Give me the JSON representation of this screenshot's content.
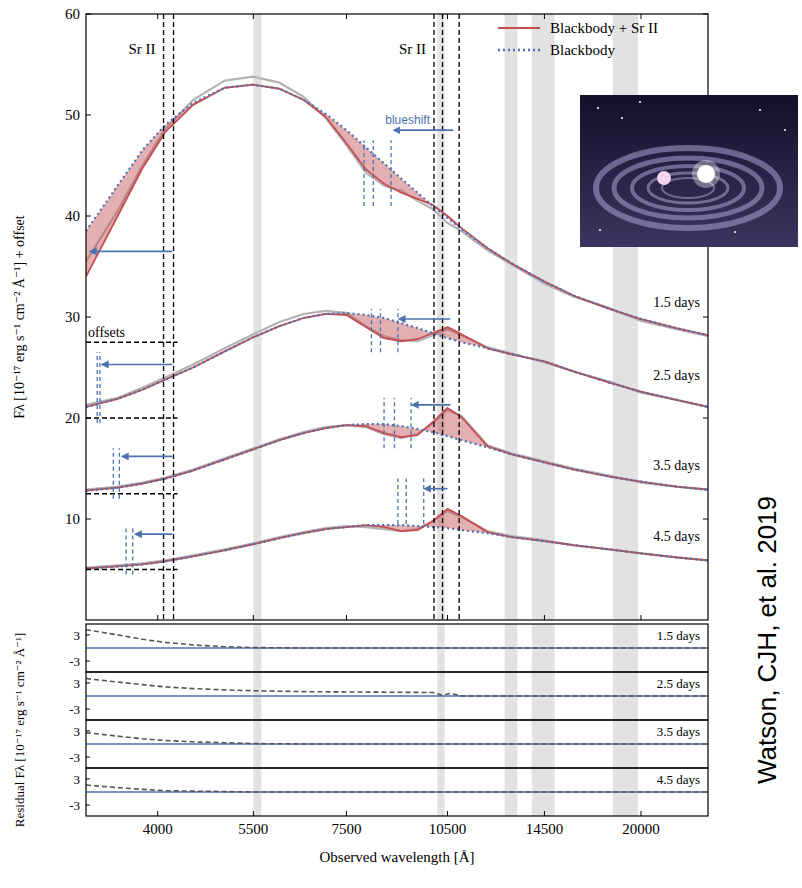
{
  "chart_data": [
    {
      "type": "line",
      "y_label": "Fλ [10⁻¹⁷ erg s⁻¹ cm⁻² Å⁻¹] + offset",
      "log": "x",
      "xlim": [
        3150,
        25000
      ],
      "xticks": [
        4000,
        5500,
        7500,
        10500,
        14500,
        20000
      ],
      "ylim": [
        0,
        60
      ],
      "yticks": [
        10,
        20,
        30,
        40,
        50,
        60
      ],
      "tick_labels": "y",
      "legend": "upper right",
      "x": [
        3150,
        3500,
        3800,
        4100,
        4500,
        5000,
        5500,
        6000,
        6500,
        7000,
        7500,
        8000,
        8500,
        9000,
        9500,
        10000,
        10500,
        11000,
        12000,
        13000,
        14500,
        16000,
        18000,
        20000,
        22500,
        25000
      ],
      "series": [
        {
          "epoch": "1.5 days",
          "color": "#b3b3b3",
          "line_style": "solid",
          "values": [
            35.5,
            40.5,
            45,
            48.6,
            51.5,
            53.4,
            53.8,
            53.2,
            51.8,
            49.7,
            47,
            44.3,
            43,
            42.5,
            41.5,
            40.7,
            39.3,
            38.5,
            36.6,
            35.2,
            33.3,
            32,
            30.9,
            29.6,
            28.8,
            28.1
          ]
        },
        {
          "name": "Blackbody + Sr II",
          "epoch": "1.5 days",
          "color": "#c44e52",
          "line_style": "solid",
          "values": [
            34,
            40,
            44.7,
            48.3,
            51,
            52.7,
            53,
            52.6,
            51.5,
            49.8,
            47.2,
            44.6,
            43.2,
            42.3,
            41.7,
            41.1,
            40,
            38.8,
            36.8,
            35.3,
            33.5,
            32.1,
            30.8,
            29.8,
            28.9,
            28.2
          ]
        },
        {
          "name": "Blackbody",
          "epoch": "1.5 days",
          "color": "#4c72b0",
          "line_style": "dotted",
          "values": [
            38.5,
            43,
            46.5,
            49,
            51.2,
            52.7,
            53,
            52.6,
            51.5,
            50.1,
            48.5,
            46.8,
            45.2,
            43.7,
            42.3,
            41,
            39.8,
            38.7,
            36.8,
            35.3,
            33.5,
            32.1,
            30.8,
            29.8,
            28.9,
            28.2
          ]
        },
        {
          "epoch": "2.5 days",
          "color": "#b3b3b3",
          "line_style": "solid",
          "values": [
            21.3,
            22,
            23,
            24,
            25.3,
            26.9,
            28.3,
            29.5,
            30.3,
            30.6,
            30.4,
            29.1,
            28.1,
            27.7,
            27.6,
            28.2,
            28.8,
            28.2,
            27,
            26.4,
            25.5,
            24.6,
            23.6,
            22.5,
            21.8,
            21.1
          ]
        },
        {
          "name": "Blackbody + Sr II",
          "epoch": "2.5 days",
          "color": "#c44e52",
          "line_style": "solid",
          "values": [
            21.1,
            21.9,
            22.8,
            23.8,
            25,
            26.6,
            28,
            29.1,
            29.9,
            30.3,
            30.2,
            29,
            27.9,
            27.6,
            27.8,
            28.4,
            29,
            28.3,
            26.9,
            26.3,
            25.6,
            24.6,
            23.5,
            22.6,
            21.8,
            21.1
          ]
        },
        {
          "name": "Blackbody",
          "epoch": "2.5 days",
          "color": "#4c72b0",
          "line_style": "dotted",
          "values": [
            21.1,
            21.9,
            22.8,
            23.8,
            25,
            26.6,
            28,
            29.1,
            29.9,
            30.3,
            30.4,
            30.2,
            29.9,
            29.4,
            28.9,
            28.4,
            27.9,
            27.5,
            26.9,
            26.3,
            25.6,
            24.6,
            23.5,
            22.6,
            21.8,
            21.1
          ]
        },
        {
          "epoch": "3.5 days",
          "color": "#b3b3b3",
          "line_style": "solid",
          "values": [
            12.9,
            13.2,
            13.6,
            14.1,
            14.9,
            16,
            17,
            17.9,
            18.6,
            19.1,
            19.3,
            19.1,
            18.4,
            18,
            18.4,
            19.5,
            20.8,
            20.2,
            17.3,
            16.5,
            15.7,
            15,
            14.3,
            13.6,
            13.2,
            12.9
          ]
        },
        {
          "name": "Blackbody + Sr II",
          "epoch": "3.5 days",
          "color": "#c44e52",
          "line_style": "solid",
          "values": [
            12.8,
            13.1,
            13.5,
            14,
            14.8,
            15.9,
            16.9,
            17.8,
            18.5,
            19,
            19.3,
            19.2,
            18.5,
            18.1,
            18.3,
            19.6,
            21,
            20.1,
            17.2,
            16.4,
            15.6,
            14.9,
            14.2,
            13.7,
            13.2,
            12.9
          ]
        },
        {
          "name": "Blackbody",
          "epoch": "3.5 days",
          "color": "#4c72b0",
          "line_style": "dotted",
          "values": [
            12.8,
            13.1,
            13.5,
            14,
            14.8,
            15.9,
            16.9,
            17.8,
            18.5,
            19,
            19.3,
            19.4,
            19.4,
            19.2,
            18.9,
            18.6,
            18.2,
            17.8,
            17.1,
            16.4,
            15.6,
            14.9,
            14.2,
            13.7,
            13.2,
            12.9
          ]
        },
        {
          "epoch": "4.5 days",
          "color": "#b3b3b3",
          "line_style": "solid",
          "values": [
            5.2,
            5.4,
            5.6,
            5.9,
            6.4,
            7,
            7.6,
            8.2,
            8.7,
            9.1,
            9.3,
            9.2,
            9,
            8.8,
            9,
            9.8,
            10.8,
            10.2,
            8.8,
            8.3,
            7.9,
            7.4,
            7,
            6.6,
            6.2,
            5.9
          ]
        },
        {
          "name": "Blackbody + Sr II",
          "epoch": "4.5 days",
          "color": "#c44e52",
          "line_style": "solid",
          "values": [
            5.1,
            5.3,
            5.5,
            5.8,
            6.3,
            6.9,
            7.5,
            8.1,
            8.6,
            9,
            9.2,
            9.4,
            9.2,
            8.8,
            8.9,
            9.8,
            11,
            10.3,
            8.7,
            8.2,
            7.8,
            7.4,
            7,
            6.6,
            6.2,
            5.9
          ]
        },
        {
          "name": "Blackbody",
          "epoch": "4.5 days",
          "color": "#4c72b0",
          "line_style": "dotted",
          "values": [
            5.1,
            5.3,
            5.5,
            5.8,
            6.3,
            6.9,
            7.5,
            8.1,
            8.6,
            9,
            9.2,
            9.4,
            9.4,
            9.4,
            9.3,
            9.2,
            9.1,
            8.9,
            8.6,
            8.2,
            7.8,
            7.4,
            7,
            6.6,
            6.2,
            5.9
          ]
        }
      ],
      "epochs": [
        {
          "label": "1.5 days",
          "offset": 27.5,
          "left": {
            "arrow": [
              4200,
              3200,
              36.5
            ]
          },
          "right": {
            "lines": [
              7950,
              8200,
              8700
            ],
            "span": [
              41,
              47.5
            ],
            "arrow": [
              10700,
              8800,
              48.5
            ]
          }
        },
        {
          "label": "2.5 days",
          "offset": 20,
          "left": {
            "lines": [
              3270,
              3300
            ],
            "span": [
              19.5,
              26.5
            ],
            "arrow": [
              4200,
              3330,
              25.3
            ]
          },
          "right": {
            "lines": [
              8150,
              8400,
              8900
            ],
            "span": [
              26.5,
              30.8
            ],
            "arrow": [
              10600,
              8950,
              29.8
            ]
          }
        },
        {
          "label": "3.5 days",
          "offset": 12.5,
          "left": {
            "lines": [
              3450,
              3520
            ],
            "span": [
              12,
              17
            ],
            "arrow": [
              4200,
              3560,
              16.2
            ]
          },
          "right": {
            "lines": [
              8500,
              8800,
              9300
            ],
            "span": [
              17,
              22
            ],
            "arrow": [
              10600,
              9350,
              21.3
            ]
          }
        },
        {
          "label": "4.5 days",
          "offset": 5,
          "left": {
            "lines": [
              3600,
              3680
            ],
            "span": [
              4.5,
              9.3
            ],
            "arrow": [
              4200,
              3720,
              8.5
            ]
          },
          "right": {
            "lines": [
              8900,
              9150,
              9700
            ],
            "span": [
              9.5,
              14
            ],
            "arrow": [
              10500,
              9750,
              13
            ]
          }
        }
      ],
      "sr_groups": [
        {
          "label": "Sr II",
          "lines": [
            4078,
            4216
          ]
        },
        {
          "label": "Sr II",
          "lines": [
            10037,
            10327,
            10915
          ]
        }
      ],
      "masked_regions": [
        [
          5500,
          5650
        ],
        [
          10150,
          10400
        ],
        [
          12700,
          13250
        ],
        [
          13900,
          15000
        ],
        [
          18200,
          19800
        ]
      ],
      "blueshift_label": "blueshift",
      "offsets_label": "offsets",
      "credit": "Watson, CJH, et al. 2019"
    },
    {
      "type": "line",
      "y_label": "Residual Fλ [10⁻¹⁷ erg s⁻¹ cm⁻² Å⁻¹]",
      "x_label": "Observed wavelength [Å]",
      "log": "x",
      "xlim": [
        3150,
        25000
      ],
      "xticks": [
        4000,
        5500,
        7500,
        10500,
        14500,
        20000
      ],
      "ylim": [
        -5.5,
        5.5
      ],
      "yticks": [
        -3,
        3
      ],
      "x": [
        3150,
        3500,
        3800,
        4100,
        4500,
        5000,
        5500,
        6500,
        8000,
        10000,
        10300,
        10600,
        11000,
        14000,
        25000
      ],
      "series": [
        {
          "name": "1.5 days",
          "color": "#555555",
          "line_style": "dashed",
          "values": [
            4.2,
            3,
            2,
            1.3,
            0.7,
            0.3,
            0.1,
            0,
            0,
            0,
            0,
            0,
            0,
            0,
            0
          ]
        },
        {
          "name": "2.5 days",
          "color": "#555555",
          "line_style": "dashed",
          "values": [
            4,
            3.2,
            2.6,
            2.1,
            1.7,
            1.4,
            1.2,
            1,
            0.9,
            0.8,
            0.2,
            0.6,
            0,
            0,
            0
          ]
        },
        {
          "name": "3.5 days",
          "color": "#555555",
          "line_style": "dashed",
          "values": [
            2.6,
            1.8,
            1.2,
            0.8,
            0.5,
            0.3,
            0.1,
            0,
            0,
            0,
            0,
            0,
            0,
            0,
            0
          ]
        },
        {
          "name": "4.5 days",
          "color": "#555555",
          "line_style": "dashed",
          "values": [
            1.6,
            1,
            0.6,
            0.3,
            0.2,
            0.1,
            0,
            0,
            0,
            0,
            0,
            0,
            0,
            0,
            0
          ]
        }
      ]
    }
  ]
}
